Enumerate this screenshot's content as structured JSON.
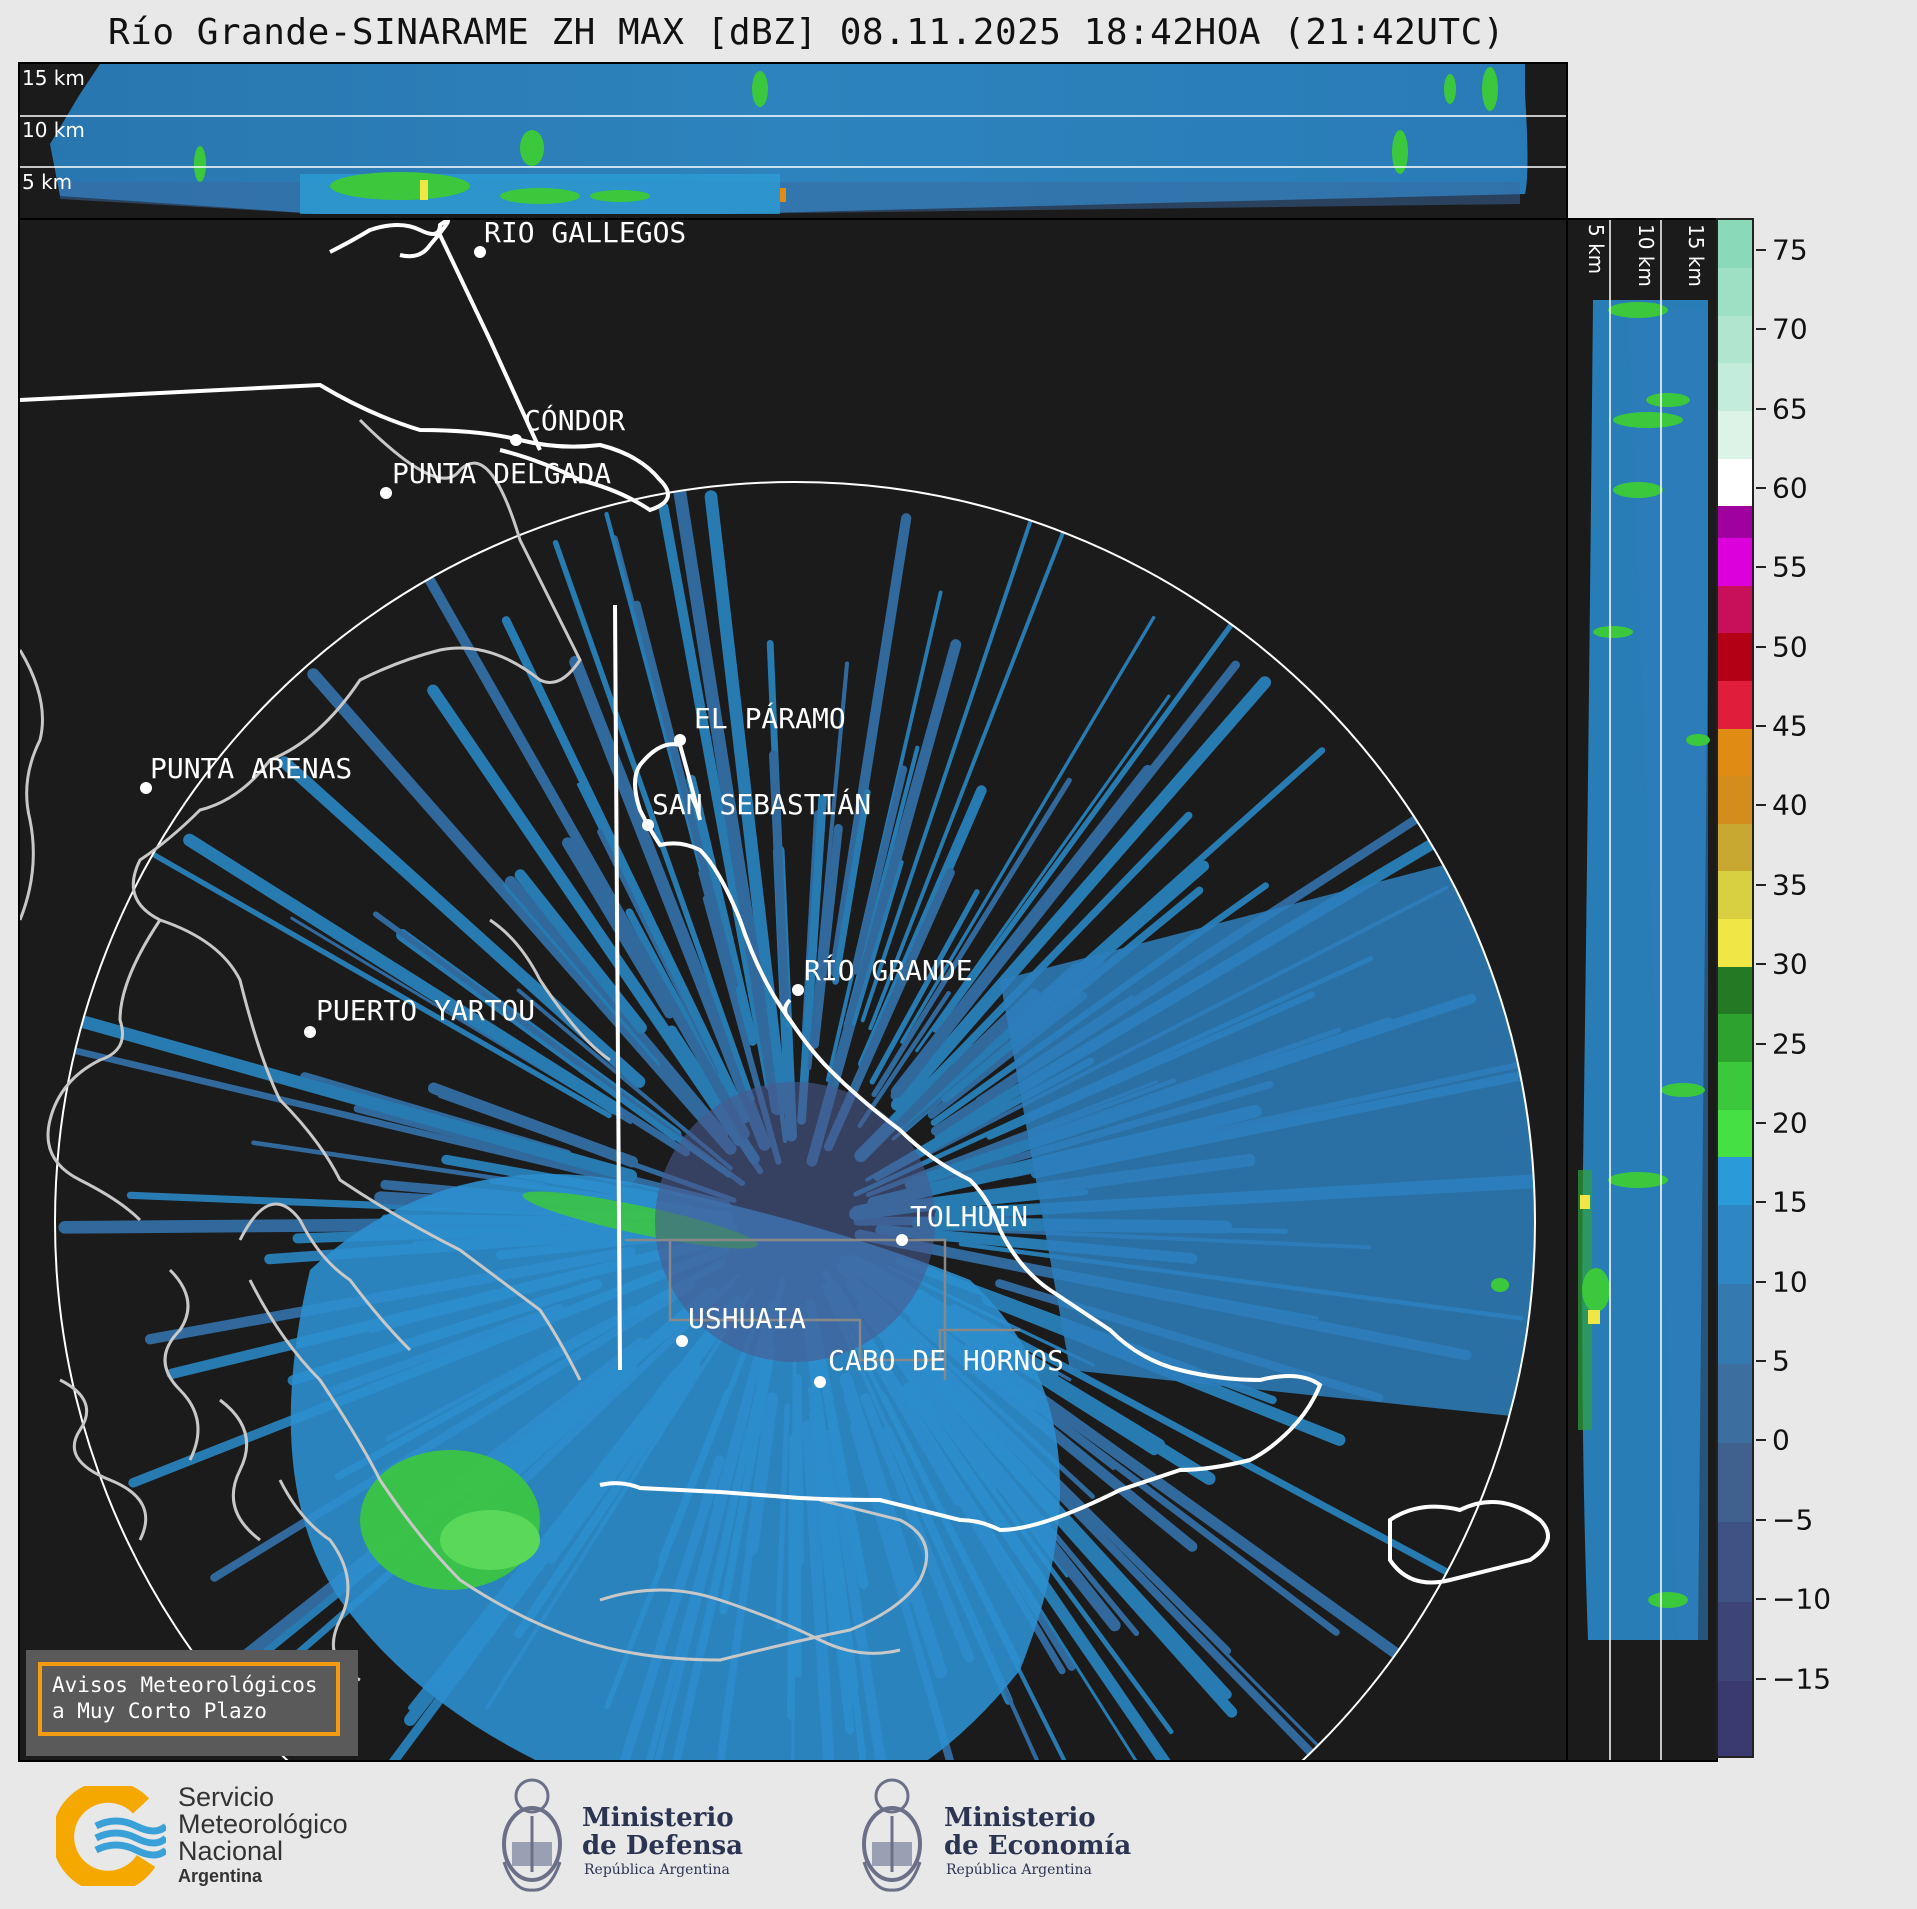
{
  "title": "Río Grande-SINARAME ZH MAX [dBZ] 08.11.2025 18:42HOA (21:42UTC)",
  "top_panel": {
    "altitude_labels": [
      "15 km",
      "10 km",
      "5 km"
    ]
  },
  "side_panel": {
    "altitude_labels": [
      "5 km",
      "10 km",
      "15 km"
    ]
  },
  "map": {
    "cities": [
      {
        "name": "RÍO GALLEGOS"
      },
      {
        "name": "CÓNDOR"
      },
      {
        "name": "PUNTA DELGADA"
      },
      {
        "name": "EL PÁRAMO"
      },
      {
        "name": "PUNTA ARENAS"
      },
      {
        "name": "SAN SEBASTIÁN"
      },
      {
        "name": "RÍO GRANDE"
      },
      {
        "name": "PUERTO YARTOU"
      },
      {
        "name": "TOLHUIN"
      },
      {
        "name": "USHUAIA"
      },
      {
        "name": "CABO DE HORNOS"
      }
    ]
  },
  "colorbar": {
    "unit": "dBZ",
    "ticks": [
      "75",
      "70",
      "65",
      "60",
      "55",
      "50",
      "45",
      "40",
      "35",
      "30",
      "25",
      "20",
      "15",
      "10",
      "5",
      "0",
      "−5",
      "−10",
      "−15"
    ],
    "range": [
      -20,
      77
    ],
    "colors": {
      "teal_high": "#8ad9b8",
      "white": "#ffffff",
      "magenta": "#c800c8",
      "red": "#c8001e",
      "orange": "#e08c14",
      "yellow": "#f0e646",
      "green": "#3cc83c",
      "blue": "#2a9ad8",
      "slate": "#4a6a98",
      "navy": "#3a3a70"
    }
  },
  "warning_box": {
    "line1": "Avisos Meteorológicos",
    "line2": "a Muy Corto Plazo"
  },
  "logos": {
    "smn": {
      "line1": "Servicio",
      "line2": "Meteorológico",
      "line3": "Nacional",
      "line4": "Argentina"
    },
    "defensa": {
      "line1": "Ministerio",
      "line2": "de Defensa",
      "line3": "República Argentina"
    },
    "economia": {
      "line1": "Ministerio",
      "line2": "de Economía",
      "line3": "República Argentina"
    }
  }
}
